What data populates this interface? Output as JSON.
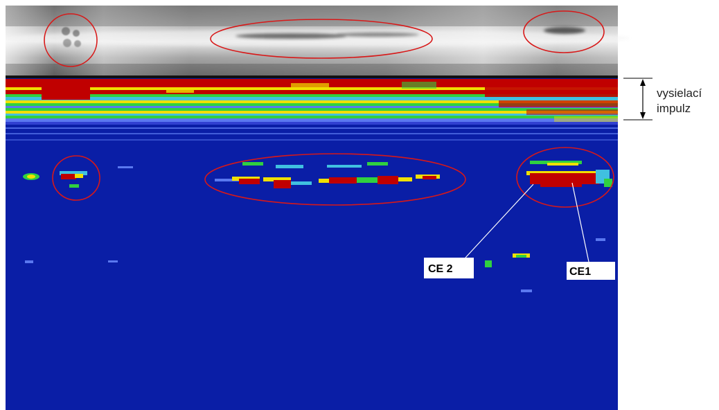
{
  "annotations": {
    "transmit_pulse_line1": "vysielací",
    "transmit_pulse_line2": "impulz",
    "ce2_label": "CE 2",
    "ce1_label": "CE1"
  },
  "colors": {
    "background": "#ffffff",
    "scan_blue": "#0a1ea6",
    "signal_red": "#c00000",
    "signal_yellow": "#f0e000",
    "signal_green": "#30d040",
    "signal_cyan": "#40c0e0",
    "signal_lightblue": "#5a78f0",
    "marker_ellipse": "#d81818",
    "leader_line": "#ffffff"
  },
  "marked_regions": [
    "left-defect",
    "middle-defect",
    "right-defect"
  ]
}
